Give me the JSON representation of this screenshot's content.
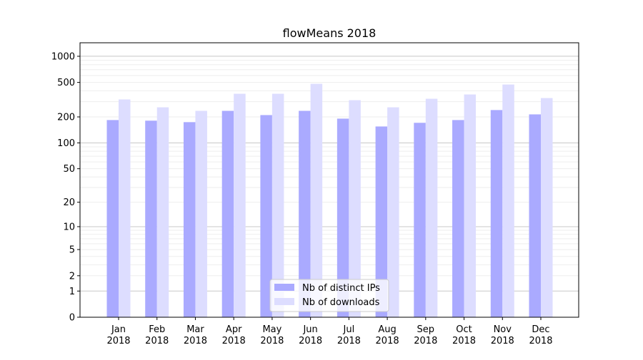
{
  "chart_data": {
    "type": "bar",
    "title": "flowMeans 2018",
    "xlabel": "",
    "ylabel": "",
    "yscale": "log(1+y)",
    "ylim": [
      0,
      1430
    ],
    "yticks": [
      0,
      1,
      2,
      5,
      10,
      20,
      50,
      100,
      200,
      500,
      1000
    ],
    "grid": true,
    "legend_position": "lower-center",
    "categories": [
      "Jan\n2018",
      "Feb\n2018",
      "Mar\n2018",
      "Apr\n2018",
      "May\n2018",
      "Jun\n2018",
      "Jul\n2018",
      "Aug\n2018",
      "Sep\n2018",
      "Oct\n2018",
      "Nov\n2018",
      "Dec\n2018"
    ],
    "series": [
      {
        "name": "Nb of distinct IPs",
        "color": "#aaaaff",
        "values": [
          184,
          181,
          174,
          235,
          210,
          235,
          191,
          155,
          171,
          184,
          240,
          214
        ]
      },
      {
        "name": "Nb of downloads",
        "color": "#ddddff",
        "values": [
          318,
          258,
          235,
          370,
          370,
          482,
          312,
          258,
          324,
          363,
          473,
          330
        ]
      }
    ]
  }
}
